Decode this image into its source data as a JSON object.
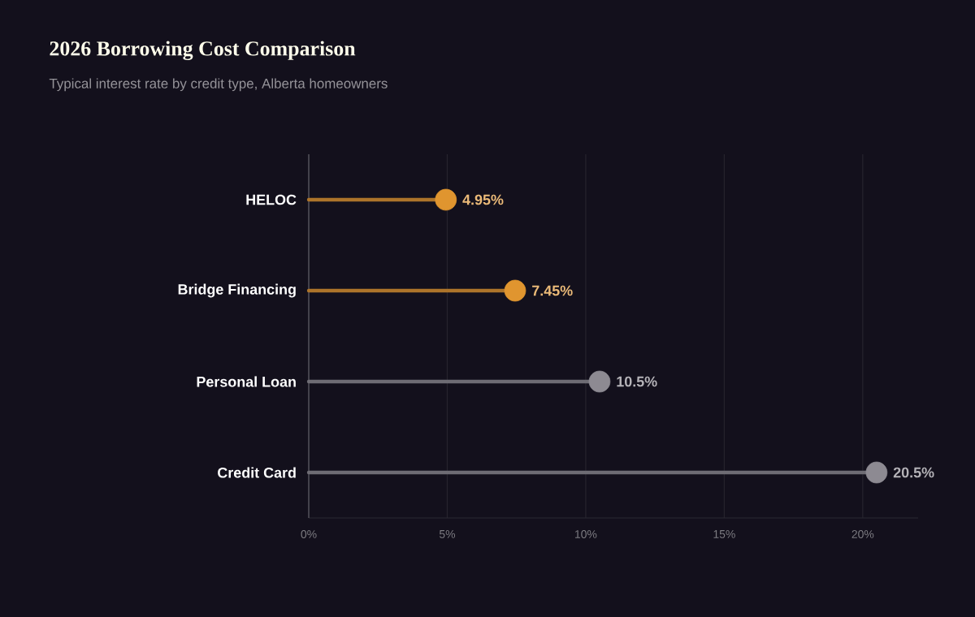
{
  "chart_data": {
    "type": "lollipop",
    "orientation": "horizontal",
    "title": "2026 Borrowing Cost Comparison",
    "subtitle": "Typical interest rate by credit type, Alberta homeowners",
    "categories": [
      "HELOC",
      "Bridge Financing",
      "Personal Loan",
      "Credit Card"
    ],
    "values": [
      4.95,
      7.45,
      10.5,
      20.5
    ],
    "colors": [
      "#e0952f",
      "#e0952f",
      "#8d8a92",
      "#8d8a92"
    ],
    "value_labels": [
      "4.95%",
      "7.45%",
      "10.5%",
      "20.5%"
    ],
    "xlim": [
      0,
      22
    ],
    "xticks": [
      {
        "value": 0,
        "label": "0%"
      },
      {
        "value": 5,
        "label": "5%"
      },
      {
        "value": 10,
        "label": "10%"
      },
      {
        "value": 15,
        "label": "15%"
      },
      {
        "value": 20,
        "label": "20%"
      }
    ],
    "grid": "x",
    "marker": "circle"
  }
}
